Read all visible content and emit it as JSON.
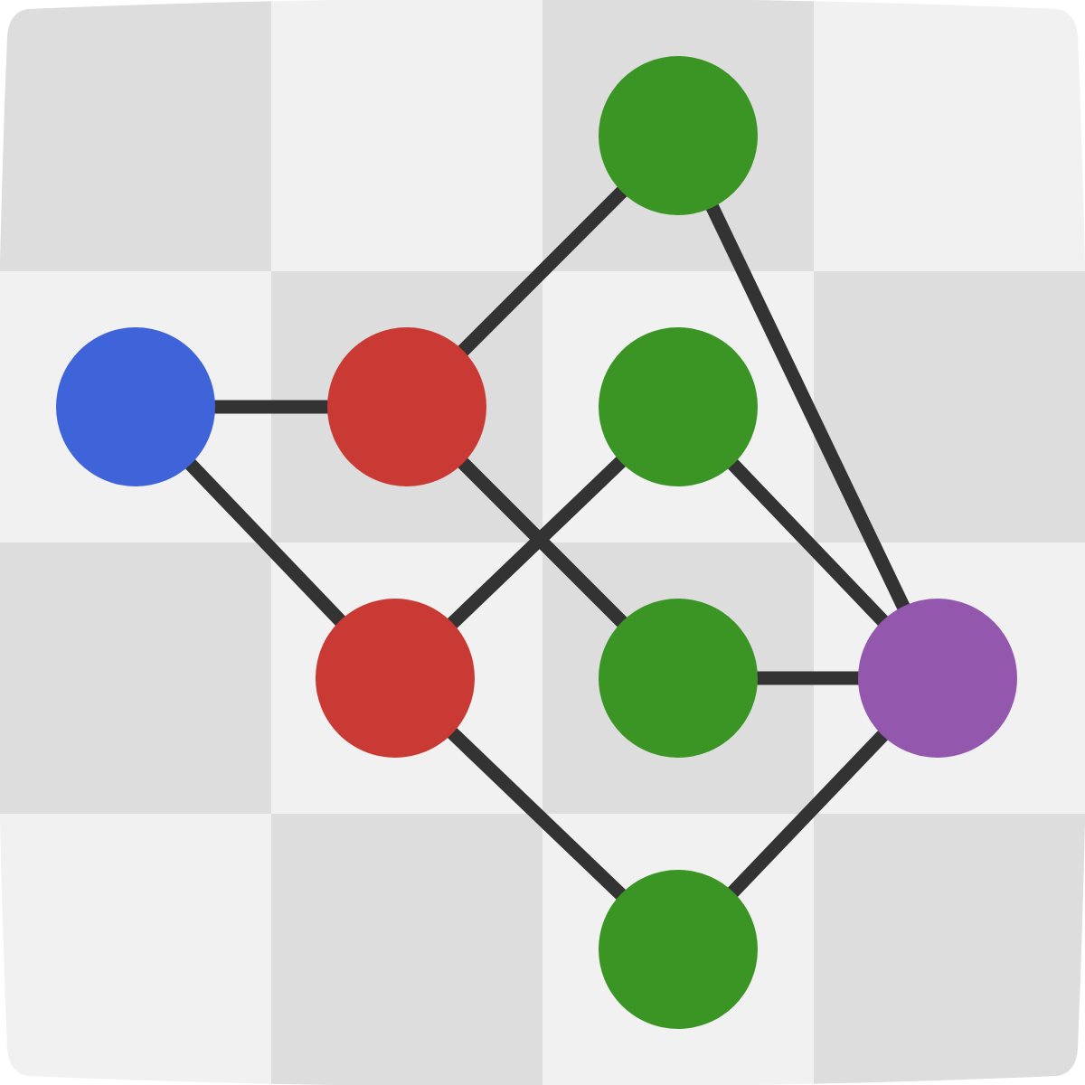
{
  "colors": {
    "tile_dark": "#dddddd",
    "tile_light": "#f1f1f1",
    "edge": "#333333",
    "source_node": "#3f63d8",
    "intermediate_node": "#c93a34",
    "leaf_node": "#3a9525",
    "sink_node": "#9358ae"
  },
  "board": {
    "rows": 4,
    "cols": 4,
    "pattern": "checkerboard",
    "first_tile": "dark"
  },
  "graph": {
    "nodes": [
      {
        "id": "blue",
        "kind": "source_node"
      },
      {
        "id": "red-top",
        "kind": "intermediate_node"
      },
      {
        "id": "red-bottom",
        "kind": "intermediate_node"
      },
      {
        "id": "green-top",
        "kind": "leaf_node"
      },
      {
        "id": "green-mid-upper",
        "kind": "leaf_node"
      },
      {
        "id": "green-mid-lower",
        "kind": "leaf_node"
      },
      {
        "id": "green-bottom",
        "kind": "leaf_node"
      },
      {
        "id": "purple",
        "kind": "sink_node"
      }
    ],
    "edges": [
      [
        "blue",
        "red-top"
      ],
      [
        "blue",
        "red-bottom"
      ],
      [
        "red-top",
        "green-top"
      ],
      [
        "red-top",
        "green-mid-lower"
      ],
      [
        "red-bottom",
        "green-mid-upper"
      ],
      [
        "red-bottom",
        "green-bottom"
      ],
      [
        "green-top",
        "purple"
      ],
      [
        "green-mid-upper",
        "purple"
      ],
      [
        "green-mid-lower",
        "purple"
      ],
      [
        "green-bottom",
        "purple"
      ]
    ]
  }
}
